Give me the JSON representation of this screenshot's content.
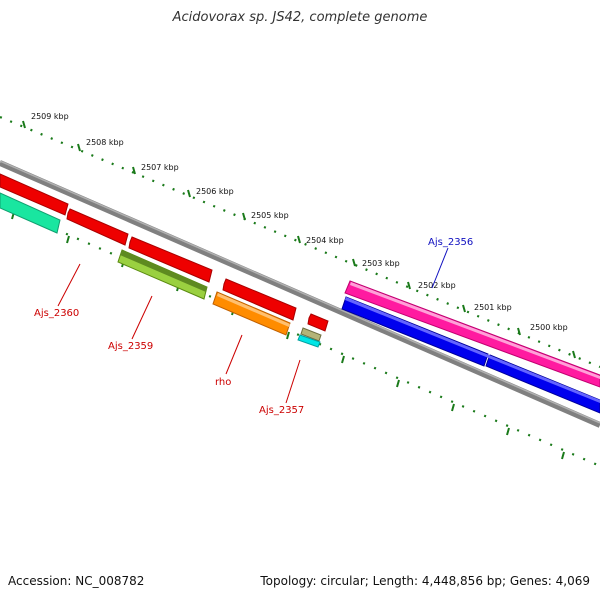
{
  "title": "Acidovorax sp. JS42, complete genome",
  "footer": {
    "accession": "Accession: NC_008782",
    "summary": "Topology: circular; Length: 4,448,856 bp; Genes: 4,069"
  },
  "scale_labels": [
    "2509 kbp",
    "2508 kbp",
    "2507 kbp",
    "2506 kbp",
    "2505 kbp",
    "2504 kbp",
    "2503 kbp",
    "2502 kbp",
    "2501 kbp",
    "2500 kbp"
  ],
  "gene_labels": [
    {
      "name": "Ajs_2356",
      "color": "#1010c0"
    },
    {
      "name": "Ajs_2360",
      "color": "#cc0000"
    },
    {
      "name": "Ajs_2359",
      "color": "#cc0000"
    },
    {
      "name": "rho",
      "color": "#cc0000"
    },
    {
      "name": "Ajs_2357",
      "color": "#cc0000"
    }
  ],
  "colors": {
    "backbone": "#808080",
    "tick": "#1a7a1a",
    "red": "#ee0000",
    "blue": "#0000ee",
    "magenta": "#ff1aa0",
    "teal": "#19e6a0",
    "olive": "#78b428",
    "orange": "#ff8c00",
    "khaki": "#a0a064",
    "cyan": "#00e6e6"
  }
}
